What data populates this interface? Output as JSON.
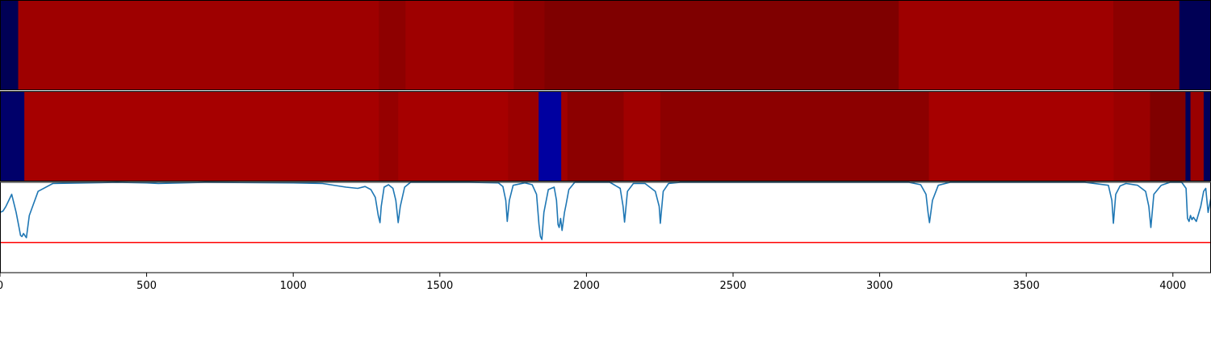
{
  "chart_data": {
    "type": "heatmap",
    "xlim": [
      0,
      4130
    ],
    "x_ticks": [
      0,
      500,
      1000,
      1500,
      2000,
      2500,
      3000,
      3500,
      4000
    ],
    "x_tick_labels": [
      "0",
      "500",
      "1000",
      "1500",
      "2000",
      "2500",
      "3000",
      "3500",
      "4000"
    ],
    "grid": false,
    "legend": "none",
    "rows": [
      {
        "segments": [
          {
            "start": 0,
            "end": 62,
            "color": "#000055"
          },
          {
            "start": 62,
            "end": 1292,
            "color": "#9e0000"
          },
          {
            "start": 1292,
            "end": 1383,
            "color": "#8e0000"
          },
          {
            "start": 1383,
            "end": 1752,
            "color": "#9e0000"
          },
          {
            "start": 1752,
            "end": 1857,
            "color": "#8c0000"
          },
          {
            "start": 1857,
            "end": 3065,
            "color": "#7f0000"
          },
          {
            "start": 3065,
            "end": 3797,
            "color": "#9e0000"
          },
          {
            "start": 3797,
            "end": 4022,
            "color": "#8c0000"
          },
          {
            "start": 4022,
            "end": 4130,
            "color": "#000055"
          }
        ]
      },
      {
        "segments": [
          {
            "start": 0,
            "end": 83,
            "color": "#00006a"
          },
          {
            "start": 83,
            "end": 1292,
            "color": "#a60000"
          },
          {
            "start": 1292,
            "end": 1358,
            "color": "#960000"
          },
          {
            "start": 1358,
            "end": 1733,
            "color": "#a60000"
          },
          {
            "start": 1733,
            "end": 1837,
            "color": "#9a0000"
          },
          {
            "start": 1837,
            "end": 1914,
            "color": "#0000a0"
          },
          {
            "start": 1914,
            "end": 1935,
            "color": "#a00000"
          },
          {
            "start": 1935,
            "end": 2127,
            "color": "#8c0000"
          },
          {
            "start": 2127,
            "end": 2252,
            "color": "#a00000"
          },
          {
            "start": 2252,
            "end": 3168,
            "color": "#8c0000"
          },
          {
            "start": 3168,
            "end": 3798,
            "color": "#a60000"
          },
          {
            "start": 3798,
            "end": 3922,
            "color": "#9a0000"
          },
          {
            "start": 3922,
            "end": 4043,
            "color": "#800000"
          },
          {
            "start": 4043,
            "end": 4060,
            "color": "#00005a"
          },
          {
            "start": 4060,
            "end": 4105,
            "color": "#9a0000"
          },
          {
            "start": 4105,
            "end": 4130,
            "color": "#00005a"
          }
        ]
      }
    ],
    "line": {
      "color": "#1f77b4",
      "ylim": [
        -0.5,
        1.0
      ],
      "threshold": {
        "y": 0.0,
        "color": "#ff0000"
      },
      "x": [
        0,
        10,
        20,
        40,
        55,
        65,
        70,
        75,
        80,
        90,
        100,
        130,
        180,
        400,
        500,
        540,
        700,
        1000,
        1100,
        1180,
        1220,
        1245,
        1265,
        1280,
        1290,
        1296,
        1300,
        1310,
        1325,
        1340,
        1350,
        1358,
        1365,
        1380,
        1400,
        1600,
        1700,
        1715,
        1725,
        1730,
        1737,
        1750,
        1790,
        1815,
        1830,
        1838,
        1843,
        1848,
        1855,
        1870,
        1890,
        1898,
        1903,
        1907,
        1912,
        1917,
        1925,
        1930,
        1940,
        1960,
        2080,
        2115,
        2125,
        2130,
        2140,
        2160,
        2200,
        2235,
        2248,
        2252,
        2262,
        2280,
        2320,
        2800,
        3100,
        3140,
        3158,
        3165,
        3170,
        3180,
        3200,
        3240,
        3500,
        3700,
        3780,
        3792,
        3797,
        3805,
        3820,
        3840,
        3880,
        3907,
        3918,
        3925,
        3935,
        3960,
        3990,
        4030,
        4045,
        4050,
        4055,
        4060,
        4065,
        4070,
        4080,
        4095,
        4105,
        4112,
        4120,
        4130
      ],
      "y": [
        0.5,
        0.52,
        0.6,
        0.8,
        0.5,
        0.25,
        0.12,
        0.1,
        0.15,
        0.08,
        0.45,
        0.85,
        0.98,
        1.0,
        0.99,
        0.98,
        1.0,
        0.99,
        0.98,
        0.92,
        0.9,
        0.93,
        0.88,
        0.75,
        0.45,
        0.33,
        0.6,
        0.92,
        0.96,
        0.9,
        0.7,
        0.33,
        0.6,
        0.92,
        1.0,
        1.0,
        0.99,
        0.93,
        0.7,
        0.35,
        0.7,
        0.95,
        0.99,
        0.96,
        0.8,
        0.3,
        0.1,
        0.05,
        0.5,
        0.88,
        0.92,
        0.7,
        0.3,
        0.25,
        0.4,
        0.2,
        0.5,
        0.62,
        0.88,
        1.0,
        1.0,
        0.9,
        0.6,
        0.34,
        0.85,
        0.98,
        0.98,
        0.85,
        0.6,
        0.32,
        0.85,
        0.98,
        1.0,
        1.0,
        1.0,
        0.96,
        0.8,
        0.5,
        0.33,
        0.7,
        0.95,
        1.0,
        1.0,
        1.0,
        0.95,
        0.7,
        0.32,
        0.8,
        0.94,
        0.98,
        0.95,
        0.85,
        0.6,
        0.25,
        0.8,
        0.95,
        1.0,
        1.0,
        0.9,
        0.4,
        0.35,
        0.45,
        0.38,
        0.42,
        0.35,
        0.6,
        0.85,
        0.9,
        0.5,
        0.75,
        0.95,
        1.0
      ]
    }
  }
}
